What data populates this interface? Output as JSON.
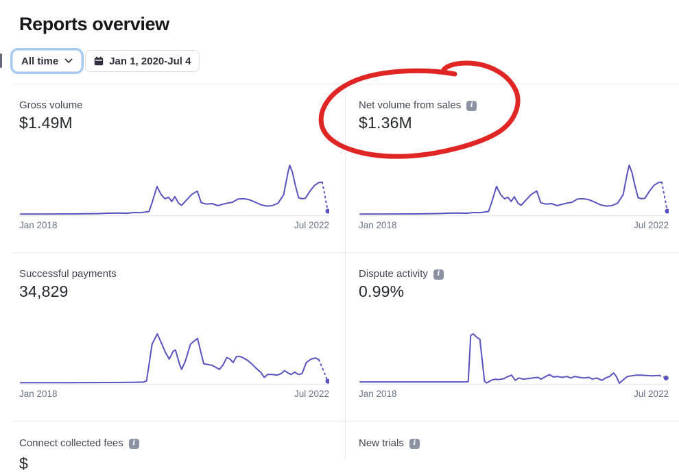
{
  "page": {
    "title": "Reports overview"
  },
  "filters": {
    "range_label": "All time",
    "date_label": "Jan 1, 2020-Jul 4"
  },
  "colors": {
    "line": "#5852be",
    "baseline": "#e7eaee",
    "annotation_red": "#df1c1c",
    "focus_ring_blue": "#a3cbf4",
    "info_badge_gray": "#8b93a2"
  },
  "cards": [
    {
      "label": "Gross volume",
      "value": "$1.49M",
      "has_info": false
    },
    {
      "label": "Net volume from sales",
      "value": "$1.36M",
      "has_info": true
    },
    {
      "label": "Successful payments",
      "value": "34,829",
      "has_info": false
    },
    {
      "label": "Dispute activity",
      "value": "0.99%",
      "has_info": true
    },
    {
      "label": "Connect collected fees",
      "value": "$",
      "has_info": true
    },
    {
      "label": "New trials",
      "value": "",
      "has_info": true
    }
  ],
  "chart_data": [
    {
      "id": "gross_volume",
      "type": "line",
      "title": "Gross volume sparkline",
      "x_start": "Jan 2018",
      "x_end": "Jul 2022",
      "ylabel": "",
      "y_units": "normalized 0-1 (axis unlabeled)",
      "grid": false,
      "points": [
        [
          0.0,
          0.01
        ],
        [
          0.06,
          0.01
        ],
        [
          0.125,
          0.012
        ],
        [
          0.19,
          0.014
        ],
        [
          0.25,
          0.02
        ],
        [
          0.285,
          0.028
        ],
        [
          0.32,
          0.032
        ],
        [
          0.345,
          0.027
        ],
        [
          0.37,
          0.042
        ],
        [
          0.39,
          0.038
        ],
        [
          0.405,
          0.05
        ],
        [
          0.418,
          0.062
        ],
        [
          0.428,
          0.24
        ],
        [
          0.444,
          0.566
        ],
        [
          0.458,
          0.4
        ],
        [
          0.47,
          0.321
        ],
        [
          0.481,
          0.35
        ],
        [
          0.492,
          0.267
        ],
        [
          0.502,
          0.362
        ],
        [
          0.514,
          0.231
        ],
        [
          0.524,
          0.186
        ],
        [
          0.542,
          0.308
        ],
        [
          0.558,
          0.412
        ],
        [
          0.575,
          0.475
        ],
        [
          0.588,
          0.24
        ],
        [
          0.605,
          0.213
        ],
        [
          0.623,
          0.222
        ],
        [
          0.642,
          0.181
        ],
        [
          0.66,
          0.213
        ],
        [
          0.672,
          0.231
        ],
        [
          0.69,
          0.25
        ],
        [
          0.708,
          0.317
        ],
        [
          0.727,
          0.321
        ],
        [
          0.745,
          0.3
        ],
        [
          0.764,
          0.25
        ],
        [
          0.782,
          0.199
        ],
        [
          0.801,
          0.172
        ],
        [
          0.819,
          0.181
        ],
        [
          0.838,
          0.231
        ],
        [
          0.856,
          0.4
        ],
        [
          0.87,
          0.85
        ],
        [
          0.876,
          1.0
        ],
        [
          0.885,
          0.85
        ],
        [
          0.894,
          0.6
        ],
        [
          0.905,
          0.34
        ],
        [
          0.916,
          0.321
        ],
        [
          0.927,
          0.33
        ],
        [
          0.942,
          0.475
        ],
        [
          0.957,
          0.593
        ],
        [
          0.971,
          0.648
        ],
        [
          0.982,
          0.655
        ]
      ],
      "projected_end": [
        1.0,
        0.07
      ],
      "projected_style": "dashed-with-dot"
    },
    {
      "id": "net_volume",
      "type": "line",
      "title": "Net volume from sales sparkline",
      "x_start": "Jan 2018",
      "x_end": "Jul 2022",
      "ylabel": "",
      "y_units": "normalized 0-1 (axis unlabeled)",
      "grid": false,
      "points": [
        [
          0.0,
          0.01
        ],
        [
          0.06,
          0.01
        ],
        [
          0.125,
          0.012
        ],
        [
          0.19,
          0.014
        ],
        [
          0.25,
          0.02
        ],
        [
          0.285,
          0.028
        ],
        [
          0.32,
          0.032
        ],
        [
          0.345,
          0.027
        ],
        [
          0.37,
          0.042
        ],
        [
          0.39,
          0.038
        ],
        [
          0.405,
          0.05
        ],
        [
          0.418,
          0.062
        ],
        [
          0.428,
          0.24
        ],
        [
          0.444,
          0.57
        ],
        [
          0.458,
          0.4
        ],
        [
          0.47,
          0.32
        ],
        [
          0.481,
          0.35
        ],
        [
          0.492,
          0.267
        ],
        [
          0.502,
          0.36
        ],
        [
          0.514,
          0.23
        ],
        [
          0.524,
          0.186
        ],
        [
          0.542,
          0.308
        ],
        [
          0.558,
          0.412
        ],
        [
          0.575,
          0.478
        ],
        [
          0.588,
          0.24
        ],
        [
          0.605,
          0.213
        ],
        [
          0.623,
          0.222
        ],
        [
          0.642,
          0.181
        ],
        [
          0.66,
          0.213
        ],
        [
          0.672,
          0.231
        ],
        [
          0.69,
          0.25
        ],
        [
          0.708,
          0.317
        ],
        [
          0.727,
          0.321
        ],
        [
          0.745,
          0.3
        ],
        [
          0.764,
          0.25
        ],
        [
          0.782,
          0.199
        ],
        [
          0.801,
          0.172
        ],
        [
          0.819,
          0.181
        ],
        [
          0.838,
          0.231
        ],
        [
          0.856,
          0.4
        ],
        [
          0.87,
          0.85
        ],
        [
          0.876,
          1.0
        ],
        [
          0.885,
          0.85
        ],
        [
          0.894,
          0.6
        ],
        [
          0.905,
          0.34
        ],
        [
          0.916,
          0.321
        ],
        [
          0.927,
          0.33
        ],
        [
          0.942,
          0.475
        ],
        [
          0.957,
          0.593
        ],
        [
          0.971,
          0.648
        ],
        [
          0.982,
          0.655
        ]
      ],
      "projected_end": [
        1.0,
        0.07
      ],
      "projected_style": "dashed-with-dot"
    },
    {
      "id": "successful_payments",
      "type": "line",
      "title": "Successful payments sparkline",
      "x_start": "Jan 2018",
      "x_end": "Jul 2022",
      "ylabel": "",
      "y_units": "normalized 0-1 (axis unlabeled)",
      "grid": false,
      "points": [
        [
          0.0,
          0.01
        ],
        [
          0.15,
          0.01
        ],
        [
          0.3,
          0.014
        ],
        [
          0.36,
          0.018
        ],
        [
          0.4,
          0.022
        ],
        [
          0.41,
          0.047
        ],
        [
          0.42,
          0.465
        ],
        [
          0.428,
          0.79
        ],
        [
          0.445,
          1.0
        ],
        [
          0.46,
          0.79
        ],
        [
          0.471,
          0.628
        ],
        [
          0.484,
          0.488
        ],
        [
          0.497,
          0.65
        ],
        [
          0.504,
          0.674
        ],
        [
          0.517,
          0.395
        ],
        [
          0.524,
          0.279
        ],
        [
          0.536,
          0.442
        ],
        [
          0.553,
          0.79
        ],
        [
          0.566,
          0.86
        ],
        [
          0.576,
          0.907
        ],
        [
          0.586,
          0.65
        ],
        [
          0.596,
          0.395
        ],
        [
          0.608,
          0.381
        ],
        [
          0.623,
          0.363
        ],
        [
          0.634,
          0.326
        ],
        [
          0.647,
          0.279
        ],
        [
          0.66,
          0.381
        ],
        [
          0.671,
          0.52
        ],
        [
          0.682,
          0.488
        ],
        [
          0.692,
          0.419
        ],
        [
          0.702,
          0.535
        ],
        [
          0.712,
          0.544
        ],
        [
          0.723,
          0.52
        ],
        [
          0.738,
          0.465
        ],
        [
          0.752,
          0.395
        ],
        [
          0.767,
          0.302
        ],
        [
          0.782,
          0.219
        ],
        [
          0.793,
          0.116
        ],
        [
          0.804,
          0.177
        ],
        [
          0.819,
          0.177
        ],
        [
          0.834,
          0.163
        ],
        [
          0.848,
          0.195
        ],
        [
          0.859,
          0.256
        ],
        [
          0.87,
          0.209
        ],
        [
          0.881,
          0.177
        ],
        [
          0.892,
          0.223
        ],
        [
          0.905,
          0.177
        ],
        [
          0.916,
          0.195
        ],
        [
          0.93,
          0.419
        ],
        [
          0.945,
          0.488
        ],
        [
          0.96,
          0.512
        ],
        [
          0.971,
          0.474
        ]
      ],
      "projected_end": [
        1.0,
        0.04
      ],
      "projected_style": "dashed-with-dot"
    },
    {
      "id": "dispute_activity",
      "type": "line",
      "title": "Dispute activity sparkline",
      "x_start": "Jan 2018",
      "x_end": "Jul 2022",
      "ylabel": "",
      "y_units": "normalized 0-1 (axis unlabeled)",
      "grid": false,
      "points": [
        [
          0.0,
          0.027
        ],
        [
          0.2,
          0.027
        ],
        [
          0.34,
          0.027
        ],
        [
          0.352,
          0.03
        ],
        [
          0.36,
          0.968
        ],
        [
          0.368,
          1.0
        ],
        [
          0.382,
          0.92
        ],
        [
          0.39,
          0.89
        ],
        [
          0.405,
          0.04
        ],
        [
          0.412,
          0.005
        ],
        [
          0.427,
          0.06
        ],
        [
          0.44,
          0.082
        ],
        [
          0.451,
          0.073
        ],
        [
          0.468,
          0.091
        ],
        [
          0.478,
          0.127
        ],
        [
          0.493,
          0.164
        ],
        [
          0.505,
          0.059
        ],
        [
          0.517,
          0.105
        ],
        [
          0.53,
          0.082
        ],
        [
          0.545,
          0.091
        ],
        [
          0.562,
          0.105
        ],
        [
          0.579,
          0.118
        ],
        [
          0.589,
          0.082
        ],
        [
          0.604,
          0.136
        ],
        [
          0.616,
          0.173
        ],
        [
          0.629,
          0.127
        ],
        [
          0.641,
          0.136
        ],
        [
          0.658,
          0.118
        ],
        [
          0.673,
          0.136
        ],
        [
          0.686,
          0.105
        ],
        [
          0.699,
          0.136
        ],
        [
          0.714,
          0.118
        ],
        [
          0.729,
          0.105
        ],
        [
          0.744,
          0.118
        ],
        [
          0.757,
          0.082
        ],
        [
          0.77,
          0.105
        ],
        [
          0.787,
          0.059
        ],
        [
          0.799,
          0.105
        ],
        [
          0.812,
          0.136
        ],
        [
          0.825,
          0.209
        ],
        [
          0.834,
          0.136
        ],
        [
          0.844,
          0.0
        ],
        [
          0.859,
          0.082
        ],
        [
          0.87,
          0.136
        ],
        [
          0.884,
          0.15
        ],
        [
          0.9,
          0.164
        ],
        [
          0.914,
          0.164
        ],
        [
          0.95,
          0.15
        ],
        [
          0.974,
          0.155
        ]
      ],
      "projected_end": [
        0.996,
        0.105
      ],
      "projected_style": "dashed-with-dot"
    }
  ]
}
